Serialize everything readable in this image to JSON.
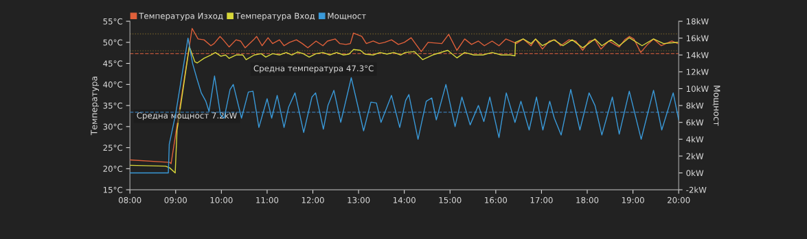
{
  "chart_data": {
    "type": "line",
    "ylabel": "Температура",
    "y2label": "Мощност",
    "xlim": [
      8,
      20
    ],
    "xticks": [
      {
        "value": 8,
        "label": "08:00"
      },
      {
        "value": 9,
        "label": "09:00"
      },
      {
        "value": 10,
        "label": "10:00"
      },
      {
        "value": 11,
        "label": "11:00"
      },
      {
        "value": 12,
        "label": "12:00"
      },
      {
        "value": 13,
        "label": "13:00"
      },
      {
        "value": 14,
        "label": "14:00"
      },
      {
        "value": 15,
        "label": "15:00"
      },
      {
        "value": 16,
        "label": "16:00"
      },
      {
        "value": 17,
        "label": "17:00"
      },
      {
        "value": 18,
        "label": "18:00"
      },
      {
        "value": 19,
        "label": "19:00"
      },
      {
        "value": 20,
        "label": "20:00"
      }
    ],
    "ylim": [
      15,
      55
    ],
    "yticks": [
      {
        "value": 15,
        "label": "15°C"
      },
      {
        "value": 20,
        "label": "20°C"
      },
      {
        "value": 25,
        "label": "25°C"
      },
      {
        "value": 30,
        "label": "30°C"
      },
      {
        "value": 35,
        "label": "35°C"
      },
      {
        "value": 40,
        "label": "40°C"
      },
      {
        "value": 45,
        "label": "45°C"
      },
      {
        "value": 50,
        "label": "50°C"
      },
      {
        "value": 55,
        "label": "55°C"
      }
    ],
    "y2lim": [
      -2,
      18
    ],
    "y2ticks": [
      {
        "value": -2,
        "label": "-2kW"
      },
      {
        "value": 0,
        "label": "0kW"
      },
      {
        "value": 2,
        "label": "2kW"
      },
      {
        "value": 4,
        "label": "4kW"
      },
      {
        "value": 6,
        "label": "6kW"
      },
      {
        "value": 8,
        "label": "8kW"
      },
      {
        "value": 10,
        "label": "10kW"
      },
      {
        "value": 12,
        "label": "12kW"
      },
      {
        "value": 14,
        "label": "14kW"
      },
      {
        "value": 16,
        "label": "16kW"
      },
      {
        "value": 18,
        "label": "18kW"
      }
    ],
    "legend": "top left",
    "grid": false,
    "marker": "none",
    "line_style": "solid",
    "ref_lines": [
      {
        "axis": "y",
        "value": 47.3,
        "label": "Средна температура 47.3°C",
        "color": "#c0573a",
        "line_style": "dashed"
      },
      {
        "axis": "y2",
        "value": 7.2,
        "label": "Средна мощност 7.2kW",
        "color": "#3a7ab0",
        "line_style": "dashed"
      },
      {
        "axis": "y",
        "value": 52,
        "color": "#6b5a2a",
        "line_style": "dotted"
      },
      {
        "axis": "y",
        "value": 48,
        "color": "#6b5a2a",
        "line_style": "dotted"
      }
    ],
    "series": [
      {
        "name": "Температура Изход",
        "color": "#e0603a",
        "x": [
          8.0,
          8.87,
          8.9,
          9.36,
          9.49,
          9.62,
          9.77,
          9.84,
          9.97,
          10.04,
          10.17,
          10.32,
          10.42,
          10.52,
          10.72,
          10.77,
          10.89,
          11.02,
          11.12,
          11.27,
          11.37,
          11.49,
          11.64,
          11.77,
          11.89,
          12.07,
          12.22,
          12.32,
          12.49,
          12.59,
          12.72,
          12.82,
          12.89,
          13.07,
          13.17,
          13.32,
          13.45,
          13.57,
          13.72,
          13.87,
          14.0,
          14.15,
          14.37,
          14.52,
          14.82,
          14.97,
          15.15,
          15.32,
          15.47,
          15.62,
          15.75,
          15.92,
          16.07,
          16.22,
          16.4,
          16.45,
          16.6,
          16.77,
          16.87,
          17.02,
          17.17,
          17.3,
          17.42,
          17.6,
          17.75,
          17.9,
          18.05,
          18.17,
          18.3,
          18.47,
          18.7,
          18.82,
          18.92,
          19.02,
          19.17,
          19.32,
          19.45,
          19.62,
          19.85,
          19.98
        ],
        "values": [
          22.1,
          21.5,
          21.2,
          53.3,
          50.8,
          50.6,
          49.2,
          49.7,
          51.4,
          50.6,
          48.9,
          50.6,
          50.3,
          48.7,
          50.8,
          51.4,
          49.2,
          51.1,
          49.7,
          50.6,
          49.2,
          50.0,
          50.6,
          49.7,
          48.7,
          50.3,
          49.2,
          50.3,
          50.8,
          49.7,
          49.5,
          49.7,
          52.2,
          51.4,
          49.7,
          50.3,
          49.7,
          50.0,
          50.6,
          49.5,
          50.0,
          51.1,
          47.8,
          50.0,
          49.7,
          51.9,
          48.1,
          50.8,
          49.5,
          50.3,
          49.2,
          50.3,
          49.2,
          50.8,
          50.0,
          49.7,
          50.8,
          49.2,
          50.8,
          48.4,
          50.3,
          50.6,
          49.2,
          50.6,
          50.3,
          48.1,
          50.3,
          50.6,
          48.4,
          50.3,
          48.9,
          50.6,
          51.4,
          50.8,
          47.6,
          49.5,
          50.8,
          49.2,
          50.3,
          49.7
        ]
      },
      {
        "name": "Температура Вход",
        "color": "#d8d83a",
        "x": [
          8.0,
          8.78,
          8.87,
          8.99,
          9.03,
          9.3,
          9.42,
          9.47,
          9.62,
          9.77,
          9.87,
          9.99,
          10.09,
          10.17,
          10.32,
          10.47,
          10.54,
          10.72,
          10.87,
          10.97,
          11.12,
          11.27,
          11.42,
          11.54,
          11.67,
          11.79,
          11.92,
          12.07,
          12.22,
          12.37,
          12.52,
          12.67,
          12.79,
          12.89,
          13.04,
          13.14,
          13.32,
          13.47,
          13.62,
          13.77,
          13.92,
          14.02,
          14.22,
          14.4,
          14.62,
          14.95,
          15.15,
          15.32,
          15.52,
          15.72,
          15.92,
          16.12,
          16.32,
          16.42,
          16.43,
          16.6,
          16.77,
          16.87,
          17.02,
          17.27,
          17.47,
          17.67,
          17.9,
          18.17,
          18.32,
          18.52,
          18.7,
          18.92,
          19.2,
          19.45,
          19.67,
          19.98
        ],
        "values": [
          20.8,
          20.6,
          20.2,
          19.0,
          29.1,
          49.0,
          45.4,
          45.1,
          46.2,
          47.0,
          47.6,
          46.7,
          47.0,
          46.2,
          47.0,
          47.0,
          45.9,
          47.0,
          47.3,
          46.5,
          47.3,
          47.0,
          47.6,
          47.0,
          47.7,
          47.3,
          46.5,
          47.3,
          47.6,
          47.0,
          47.6,
          47.0,
          47.2,
          48.3,
          48.1,
          47.2,
          47.0,
          47.6,
          47.2,
          47.6,
          47.0,
          47.6,
          47.8,
          45.9,
          47.0,
          48.1,
          46.3,
          47.6,
          47.0,
          47.0,
          47.6,
          47.0,
          47.0,
          46.8,
          50.0,
          50.8,
          49.7,
          50.8,
          49.2,
          50.6,
          49.2,
          50.6,
          48.7,
          50.8,
          49.2,
          50.6,
          49.2,
          51.1,
          49.2,
          50.8,
          49.7,
          50.0
        ]
      },
      {
        "name": "Мощност",
        "color": "#3a9ad9",
        "axis": "y2",
        "x": [
          8.0,
          8.84,
          8.86,
          9.0,
          9.27,
          9.37,
          9.47,
          9.56,
          9.66,
          9.73,
          9.85,
          9.98,
          10.06,
          10.19,
          10.26,
          10.44,
          10.59,
          10.69,
          10.82,
          11.0,
          11.1,
          11.22,
          11.37,
          11.47,
          11.61,
          11.8,
          11.98,
          12.06,
          12.23,
          12.33,
          12.46,
          12.61,
          12.84,
          13.11,
          13.27,
          13.39,
          13.49,
          13.72,
          13.9,
          14.03,
          14.1,
          14.3,
          14.48,
          14.6,
          14.7,
          14.91,
          15.11,
          15.26,
          15.44,
          15.62,
          15.74,
          15.87,
          16.07,
          16.23,
          16.42,
          16.55,
          16.73,
          16.89,
          17.03,
          17.18,
          17.28,
          17.43,
          17.64,
          17.84,
          18.04,
          18.17,
          18.32,
          18.55,
          18.7,
          18.92,
          19.18,
          19.45,
          19.63,
          19.88,
          20.0
        ],
        "values": [
          0.0,
          0.0,
          3.4,
          7.0,
          16.0,
          13.0,
          11.1,
          9.5,
          8.5,
          7.3,
          11.5,
          6.9,
          6.5,
          9.9,
          10.5,
          6.5,
          9.6,
          9.7,
          5.4,
          8.8,
          6.5,
          9.2,
          5.4,
          7.8,
          9.5,
          4.8,
          9.0,
          9.5,
          5.2,
          8.0,
          9.8,
          6.0,
          11.3,
          5.0,
          8.4,
          8.3,
          6.0,
          9.2,
          5.4,
          8.6,
          9.3,
          4.0,
          8.5,
          8.9,
          6.3,
          10.5,
          5.5,
          9.0,
          5.7,
          8.0,
          6.1,
          9.0,
          4.2,
          9.5,
          6.0,
          8.5,
          5.1,
          9.0,
          5.1,
          8.5,
          6.5,
          4.5,
          9.9,
          5.1,
          9.5,
          8.0,
          4.5,
          9.0,
          4.6,
          9.7,
          4.0,
          9.8,
          5.1,
          9.5,
          6.3
        ]
      }
    ]
  }
}
